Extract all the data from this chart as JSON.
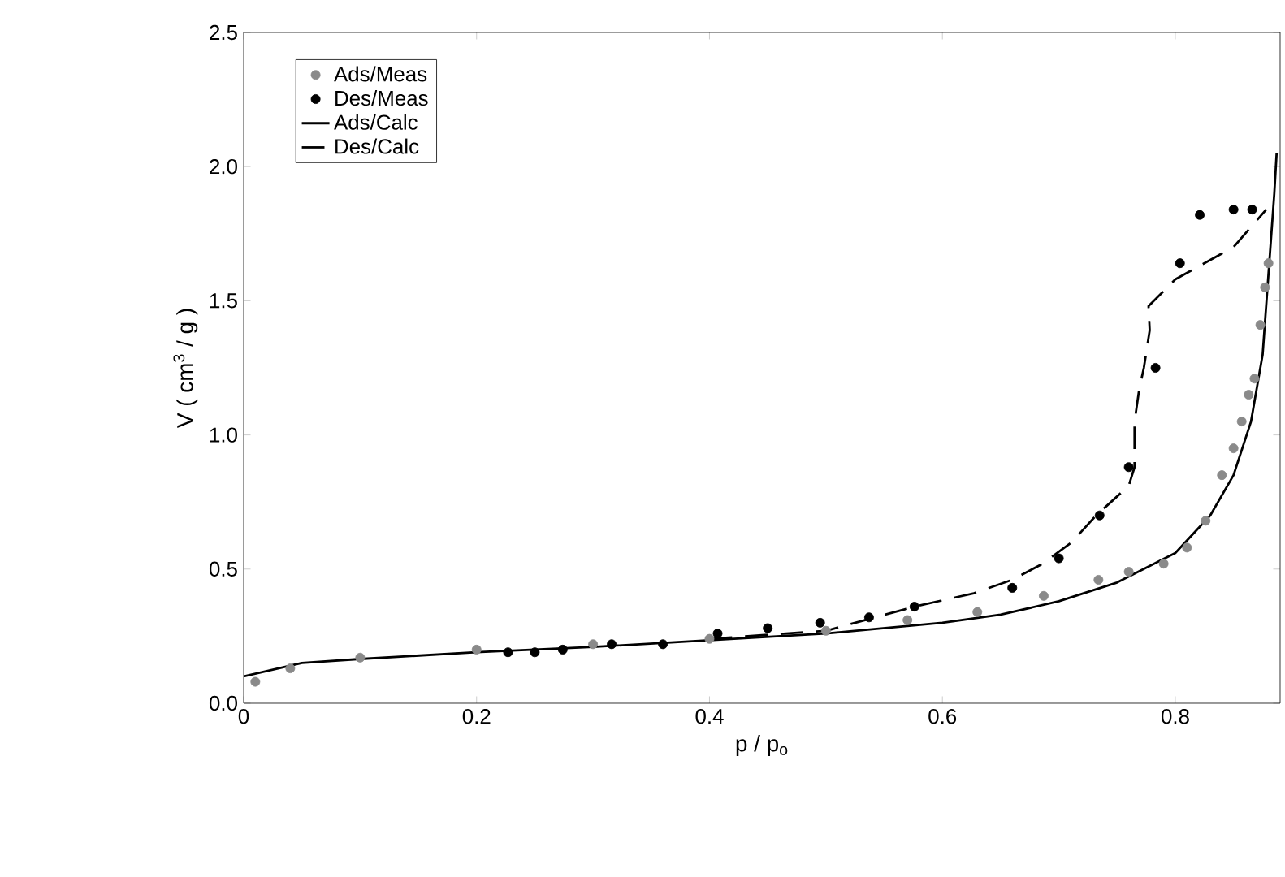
{
  "chart_data": {
    "type": "scatter",
    "xlabel": "p / p$_{o}$",
    "ylabel": "V ( cm$^{3}$ / g )",
    "xlim": [
      0,
      0.89
    ],
    "ylim": [
      0,
      2.5
    ],
    "xticks": [
      {
        "value": 0,
        "label": "0"
      },
      {
        "value": 0.2,
        "label": "0.2"
      },
      {
        "value": 0.4,
        "label": "0.4"
      },
      {
        "value": 0.6,
        "label": "0.6"
      },
      {
        "value": 0.8,
        "label": "0.8"
      }
    ],
    "yticks": [
      {
        "value": 0,
        "label": "0.0"
      },
      {
        "value": 0.5,
        "label": "0.5"
      },
      {
        "value": 1,
        "label": "1.0"
      },
      {
        "value": 1.5,
        "label": "1.5"
      },
      {
        "value": 2,
        "label": "2.0"
      },
      {
        "value": 2.5,
        "label": "2.5"
      }
    ],
    "legend": "top left",
    "grid": false,
    "marker": "circle",
    "series": [
      {
        "name": "Ads/Meas",
        "color": "#8a8a8a",
        "x": [
          0.01,
          0.04,
          0.1,
          0.2,
          0.3,
          0.4,
          0.5,
          0.57,
          0.63,
          0.687,
          0.734,
          0.76,
          0.79,
          0.81,
          0.826,
          0.84,
          0.85,
          0.857,
          0.863,
          0.868,
          0.873,
          0.877,
          0.88
        ],
        "values": [
          0.08,
          0.13,
          0.17,
          0.2,
          0.22,
          0.24,
          0.27,
          0.31,
          0.34,
          0.4,
          0.46,
          0.49,
          0.52,
          0.58,
          0.68,
          0.85,
          0.95,
          1.05,
          1.15,
          1.21,
          1.41,
          1.55,
          1.64
        ]
      },
      {
        "name": "Des/Meas",
        "color": "#000000",
        "x": [
          0.227,
          0.25,
          0.274,
          0.316,
          0.36,
          0.407,
          0.45,
          0.495,
          0.537,
          0.576,
          0.66,
          0.7,
          0.735,
          0.76,
          0.783,
          0.804,
          0.821,
          0.85,
          0.866
        ],
        "values": [
          0.19,
          0.19,
          0.2,
          0.22,
          0.22,
          0.26,
          0.28,
          0.3,
          0.32,
          0.36,
          0.43,
          0.54,
          0.7,
          0.88,
          1.25,
          1.64,
          1.82,
          1.84,
          1.84
        ]
      },
      {
        "name": "Ads/Calc",
        "type": "line",
        "marker": "none",
        "line_style": "solid",
        "color": "#000000",
        "x": [
          0,
          0.05,
          0.1,
          0.2,
          0.3,
          0.4,
          0.5,
          0.6,
          0.65,
          0.7,
          0.75,
          0.8,
          0.83,
          0.85,
          0.865,
          0.875,
          0.88,
          0.885,
          0.887
        ],
        "values": [
          0.1,
          0.15,
          0.165,
          0.19,
          0.21,
          0.235,
          0.26,
          0.3,
          0.33,
          0.38,
          0.45,
          0.56,
          0.7,
          0.85,
          1.05,
          1.3,
          1.6,
          1.9,
          2.05
        ]
      },
      {
        "name": "Des/Calc",
        "type": "line",
        "marker": "none",
        "line_style": "dashed",
        "color": "#000000",
        "x": [
          0.4,
          0.5,
          0.576,
          0.627,
          0.66,
          0.686,
          0.711,
          0.732,
          0.76,
          0.765,
          0.765,
          0.769,
          0.773,
          0.778,
          0.777,
          0.8,
          0.85,
          0.878
        ],
        "values": [
          0.24,
          0.27,
          0.36,
          0.41,
          0.46,
          0.52,
          0.6,
          0.7,
          0.81,
          0.88,
          1.05,
          1.17,
          1.25,
          1.39,
          1.48,
          1.58,
          1.7,
          1.84
        ]
      }
    ]
  }
}
